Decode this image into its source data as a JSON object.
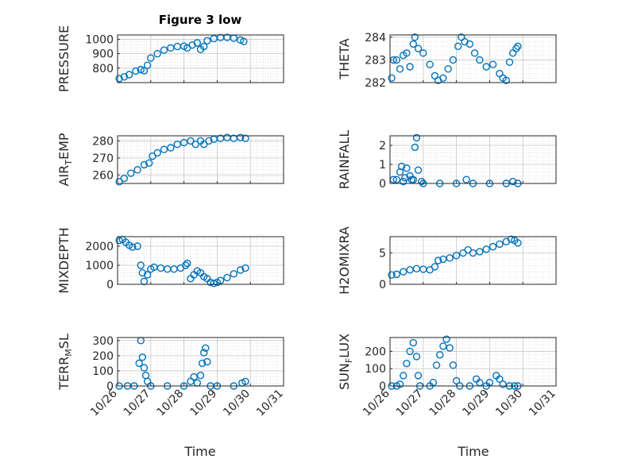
{
  "figure": {
    "title": "Figure 3 low",
    "xlabel": "Time",
    "marker_color": "#0072BD",
    "x_ticks": [
      "10/26",
      "10/27",
      "10/28",
      "10/29",
      "10/30",
      "10/31"
    ]
  },
  "chart_data": [
    {
      "type": "scatter",
      "ylabel": "PRESSURE",
      "ylim": [
        700,
        1030
      ],
      "yticks": [
        800,
        900,
        1000
      ],
      "grid": true,
      "xlim": [
        0,
        5
      ],
      "points": [
        [
          0.05,
          728
        ],
        [
          0.2,
          740
        ],
        [
          0.35,
          755
        ],
        [
          0.55,
          780
        ],
        [
          0.7,
          790
        ],
        [
          0.8,
          782
        ],
        [
          0.9,
          820
        ],
        [
          1.0,
          870
        ],
        [
          1.2,
          900
        ],
        [
          1.4,
          925
        ],
        [
          1.6,
          940
        ],
        [
          1.8,
          950
        ],
        [
          2.0,
          952
        ],
        [
          2.1,
          940
        ],
        [
          2.25,
          960
        ],
        [
          2.4,
          975
        ],
        [
          2.5,
          930
        ],
        [
          2.6,
          950
        ],
        [
          2.7,
          990
        ],
        [
          2.9,
          1005
        ],
        [
          3.1,
          1012
        ],
        [
          3.3,
          1013
        ],
        [
          3.5,
          1008
        ],
        [
          3.7,
          995
        ],
        [
          3.8,
          985
        ]
      ]
    },
    {
      "type": "scatter",
      "ylabel": "THETA",
      "ylim": [
        282,
        284.1
      ],
      "yticks": [
        282,
        283,
        284
      ],
      "grid": true,
      "xlim": [
        0,
        5
      ],
      "points": [
        [
          0.05,
          282.2
        ],
        [
          0.1,
          283.0
        ],
        [
          0.2,
          283.0
        ],
        [
          0.3,
          282.6
        ],
        [
          0.4,
          283.2
        ],
        [
          0.5,
          283.3
        ],
        [
          0.6,
          282.7
        ],
        [
          0.7,
          283.7
        ],
        [
          0.75,
          284.0
        ],
        [
          0.85,
          283.5
        ],
        [
          1.0,
          283.3
        ],
        [
          1.2,
          282.8
        ],
        [
          1.35,
          282.3
        ],
        [
          1.45,
          282.1
        ],
        [
          1.6,
          282.2
        ],
        [
          1.75,
          282.6
        ],
        [
          1.9,
          283.0
        ],
        [
          2.05,
          283.6
        ],
        [
          2.15,
          284.0
        ],
        [
          2.25,
          283.8
        ],
        [
          2.4,
          283.7
        ],
        [
          2.55,
          283.3
        ],
        [
          2.7,
          283.0
        ],
        [
          2.9,
          282.7
        ],
        [
          3.1,
          282.8
        ],
        [
          3.3,
          282.4
        ],
        [
          3.4,
          282.2
        ],
        [
          3.5,
          282.1
        ],
        [
          3.6,
          282.9
        ],
        [
          3.7,
          283.3
        ],
        [
          3.8,
          283.5
        ],
        [
          3.85,
          283.6
        ]
      ]
    },
    {
      "type": "scatter",
      "ylabel": "AIR_TEMP",
      "ylim": [
        255,
        283
      ],
      "yticks": [
        260,
        270,
        280
      ],
      "grid": true,
      "xlim": [
        0,
        5
      ],
      "points": [
        [
          0.05,
          256
        ],
        [
          0.2,
          258
        ],
        [
          0.4,
          261
        ],
        [
          0.6,
          263
        ],
        [
          0.8,
          266
        ],
        [
          0.95,
          267
        ],
        [
          1.05,
          271
        ],
        [
          1.2,
          273
        ],
        [
          1.4,
          275
        ],
        [
          1.6,
          276
        ],
        [
          1.8,
          278
        ],
        [
          2.0,
          279
        ],
        [
          2.2,
          280
        ],
        [
          2.35,
          278
        ],
        [
          2.5,
          280
        ],
        [
          2.6,
          278
        ],
        [
          2.75,
          280
        ],
        [
          2.9,
          281
        ],
        [
          3.1,
          281.5
        ],
        [
          3.3,
          282
        ],
        [
          3.5,
          281.5
        ],
        [
          3.7,
          282
        ],
        [
          3.85,
          281.5
        ]
      ]
    },
    {
      "type": "scatter",
      "ylabel": "RAINFALL",
      "ylim": [
        0,
        2.5
      ],
      "yticks": [
        0,
        1,
        2
      ],
      "grid": true,
      "xlim": [
        0,
        5
      ],
      "points": [
        [
          0.1,
          0.2
        ],
        [
          0.2,
          0.2
        ],
        [
          0.3,
          0.6
        ],
        [
          0.35,
          0.9
        ],
        [
          0.4,
          0.1
        ],
        [
          0.45,
          0.3
        ],
        [
          0.5,
          0.8
        ],
        [
          0.6,
          0.4
        ],
        [
          0.65,
          0.2
        ],
        [
          0.7,
          0.2
        ],
        [
          0.75,
          1.9
        ],
        [
          0.8,
          2.4
        ],
        [
          0.85,
          0.7
        ],
        [
          0.95,
          0.1
        ],
        [
          1.0,
          0.0
        ],
        [
          1.5,
          0.0
        ],
        [
          2.0,
          0.0
        ],
        [
          2.3,
          0.2
        ],
        [
          2.5,
          0.0
        ],
        [
          3.0,
          0.0
        ],
        [
          3.5,
          0.0
        ],
        [
          3.7,
          0.1
        ],
        [
          3.85,
          0.0
        ]
      ]
    },
    {
      "type": "scatter",
      "ylabel": "MIXDEPTH",
      "ylim": [
        0,
        2500
      ],
      "yticks": [
        0,
        1000,
        2000
      ],
      "grid": true,
      "xlim": [
        0,
        5
      ],
      "points": [
        [
          0.05,
          2300
        ],
        [
          0.15,
          2350
        ],
        [
          0.25,
          2200
        ],
        [
          0.35,
          2050
        ],
        [
          0.45,
          1950
        ],
        [
          0.6,
          2000
        ],
        [
          0.7,
          1000
        ],
        [
          0.75,
          600
        ],
        [
          0.8,
          150
        ],
        [
          0.9,
          500
        ],
        [
          1.0,
          800
        ],
        [
          1.1,
          900
        ],
        [
          1.3,
          850
        ],
        [
          1.5,
          800
        ],
        [
          1.7,
          800
        ],
        [
          1.9,
          850
        ],
        [
          2.05,
          1000
        ],
        [
          2.1,
          1100
        ],
        [
          2.2,
          300
        ],
        [
          2.3,
          500
        ],
        [
          2.4,
          700
        ],
        [
          2.5,
          600
        ],
        [
          2.6,
          400
        ],
        [
          2.7,
          300
        ],
        [
          2.8,
          100
        ],
        [
          2.9,
          50
        ],
        [
          3.0,
          100
        ],
        [
          3.1,
          200
        ],
        [
          3.3,
          350
        ],
        [
          3.5,
          550
        ],
        [
          3.7,
          750
        ],
        [
          3.85,
          850
        ]
      ]
    },
    {
      "type": "scatter",
      "ylabel": "H2OMIXRA",
      "ylim": [
        0,
        7.6
      ],
      "yticks": [
        0,
        5
      ],
      "grid": true,
      "xlim": [
        0,
        5
      ],
      "points": [
        [
          0.05,
          1.5
        ],
        [
          0.2,
          1.6
        ],
        [
          0.4,
          2.0
        ],
        [
          0.6,
          2.3
        ],
        [
          0.8,
          2.5
        ],
        [
          1.0,
          2.4
        ],
        [
          1.2,
          2.3
        ],
        [
          1.35,
          2.8
        ],
        [
          1.45,
          3.8
        ],
        [
          1.6,
          4.0
        ],
        [
          1.8,
          4.2
        ],
        [
          2.0,
          4.6
        ],
        [
          2.2,
          5.0
        ],
        [
          2.35,
          5.5
        ],
        [
          2.5,
          5.0
        ],
        [
          2.7,
          5.2
        ],
        [
          2.9,
          5.6
        ],
        [
          3.1,
          6.0
        ],
        [
          3.3,
          6.4
        ],
        [
          3.5,
          6.8
        ],
        [
          3.65,
          7.2
        ],
        [
          3.75,
          7.0
        ],
        [
          3.85,
          6.6
        ]
      ]
    },
    {
      "type": "scatter",
      "ylabel": "TERR_MSL",
      "ylim": [
        0,
        320
      ],
      "yticks": [
        0,
        100,
        200,
        300
      ],
      "grid": true,
      "xlim": [
        0,
        5
      ],
      "points": [
        [
          0.05,
          0
        ],
        [
          0.3,
          0
        ],
        [
          0.5,
          0
        ],
        [
          0.65,
          150
        ],
        [
          0.7,
          300
        ],
        [
          0.75,
          190
        ],
        [
          0.8,
          120
        ],
        [
          0.85,
          70
        ],
        [
          0.9,
          30
        ],
        [
          1.0,
          0
        ],
        [
          1.5,
          0
        ],
        [
          2.0,
          0
        ],
        [
          2.2,
          30
        ],
        [
          2.3,
          60
        ],
        [
          2.4,
          20
        ],
        [
          2.5,
          70
        ],
        [
          2.55,
          150
        ],
        [
          2.6,
          220
        ],
        [
          2.65,
          250
        ],
        [
          2.7,
          160
        ],
        [
          2.8,
          0
        ],
        [
          3.0,
          0
        ],
        [
          3.5,
          0
        ],
        [
          3.75,
          20
        ],
        [
          3.85,
          30
        ]
      ]
    },
    {
      "type": "scatter",
      "ylabel": "SUN_FLUX",
      "ylim": [
        0,
        280
      ],
      "yticks": [
        0,
        100,
        200
      ],
      "grid": true,
      "xlim": [
        0,
        5
      ],
      "points": [
        [
          0.05,
          0
        ],
        [
          0.2,
          0
        ],
        [
          0.3,
          10
        ],
        [
          0.4,
          60
        ],
        [
          0.5,
          130
        ],
        [
          0.6,
          200
        ],
        [
          0.7,
          250
        ],
        [
          0.8,
          170
        ],
        [
          0.85,
          60
        ],
        [
          0.9,
          0
        ],
        [
          1.2,
          0
        ],
        [
          1.3,
          20
        ],
        [
          1.4,
          120
        ],
        [
          1.5,
          180
        ],
        [
          1.6,
          230
        ],
        [
          1.7,
          270
        ],
        [
          1.8,
          220
        ],
        [
          1.9,
          120
        ],
        [
          2.0,
          30
        ],
        [
          2.1,
          0
        ],
        [
          2.4,
          0
        ],
        [
          2.6,
          40
        ],
        [
          2.7,
          20
        ],
        [
          2.9,
          0
        ],
        [
          3.0,
          20
        ],
        [
          3.2,
          60
        ],
        [
          3.3,
          40
        ],
        [
          3.4,
          10
        ],
        [
          3.6,
          0
        ],
        [
          3.75,
          0
        ],
        [
          3.85,
          0
        ]
      ]
    }
  ],
  "panel_labels": {
    "air_temp": {
      "main": "AIR",
      "sub": "T",
      "rest": "EMP"
    },
    "terr_msl": {
      "main": "TERR",
      "sub": "M",
      "rest": "SL"
    },
    "sun_flux": {
      "main": "SUN",
      "sub": "F",
      "rest": "LUX"
    }
  }
}
